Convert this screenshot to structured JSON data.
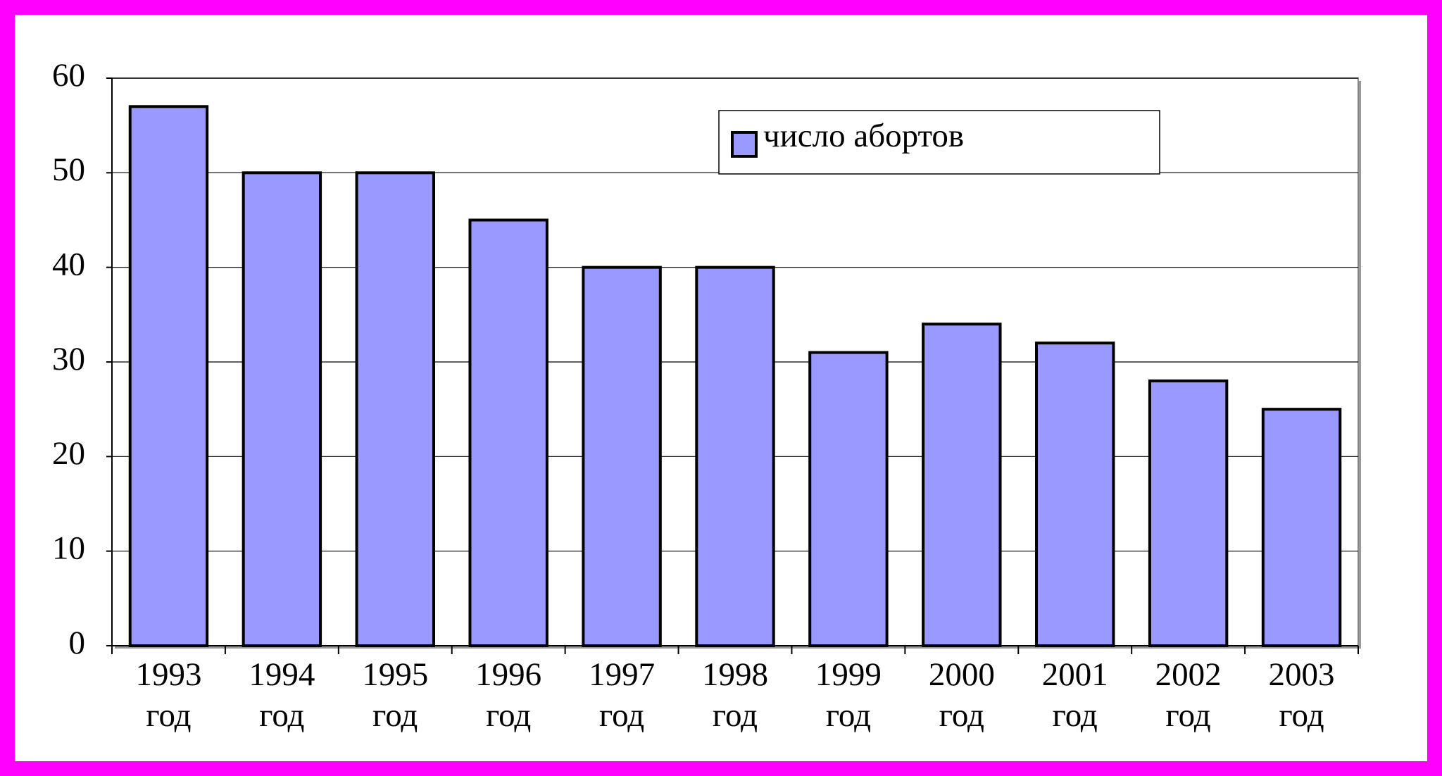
{
  "chart_data": {
    "type": "bar",
    "categories": [
      "1993 год",
      "1994 год",
      "1995 год",
      "1996 год",
      "1997 год",
      "1998 год",
      "1999 год",
      "2000 год",
      "2001 год",
      "2002 год",
      "2003 год"
    ],
    "series": [
      {
        "name": "число абортов",
        "color": "#9999ff",
        "values": [
          57,
          50,
          50,
          45,
          40,
          40,
          31,
          34,
          32,
          28,
          25
        ]
      }
    ],
    "ylim": [
      0,
      60
    ],
    "yticks": [
      0,
      10,
      20,
      30,
      40,
      50,
      60
    ],
    "grid": true
  }
}
